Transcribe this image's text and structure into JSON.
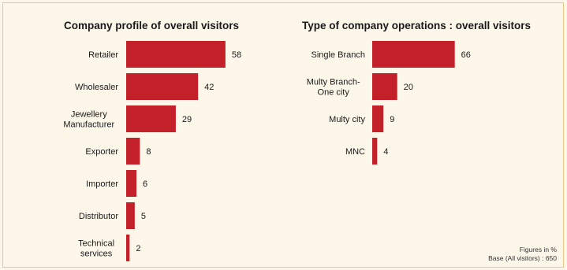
{
  "colors": {
    "bar": "#c4202a",
    "background": "#fdf7ea",
    "border": "#e8c98a"
  },
  "footnote": {
    "line1": "Figures in %",
    "line2": "Base (All visitors) : 650"
  },
  "chart_data": [
    {
      "type": "bar",
      "orientation": "horizontal",
      "title": "Company profile of overall visitors",
      "categories": [
        [
          "Retailer"
        ],
        [
          "Wholesaler"
        ],
        [
          "Jewellery",
          "Manufacturer"
        ],
        [
          "Exporter"
        ],
        [
          "Importer"
        ],
        [
          "Distributor"
        ],
        [
          "Technical",
          "services"
        ]
      ],
      "values": [
        58,
        42,
        29,
        8,
        6,
        5,
        2
      ],
      "unit": "%"
    },
    {
      "type": "bar",
      "orientation": "horizontal",
      "title": "Type of company operations : overall visitors",
      "categories": [
        [
          "Single Branch"
        ],
        [
          "Multy Branch-",
          "One city"
        ],
        [
          "Multy city"
        ],
        [
          "MNC"
        ]
      ],
      "values": [
        66,
        20,
        9,
        4
      ],
      "unit": "%"
    }
  ]
}
